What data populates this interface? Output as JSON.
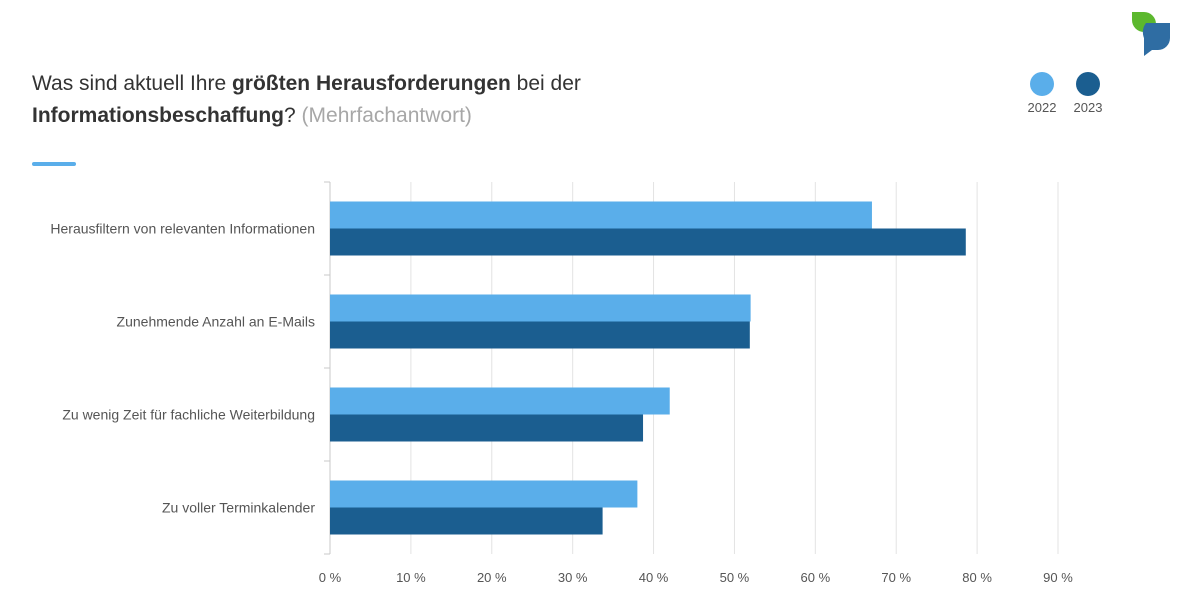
{
  "header": {
    "title_part1": "Was sind aktuell Ihre ",
    "title_bold1": "größten Herausforderungen",
    "title_part2": " bei der ",
    "title_bold2": "Informationsbeschaffung",
    "title_part3": "? ",
    "title_hint": "(Mehrfachantwort)"
  },
  "colors": {
    "accent": "#5aaeea",
    "series_2022": "#5aaeea",
    "series_2023": "#1b5e90",
    "logo_green": "#5cb82e",
    "logo_blue": "#2f6da3"
  },
  "legend": [
    {
      "label": "2022",
      "color": "#5aaeea"
    },
    {
      "label": "2023",
      "color": "#1b5e90"
    }
  ],
  "logo": {
    "icon": "speech-bubble-logo-icon"
  },
  "chart_data": {
    "type": "bar",
    "orientation": "horizontal",
    "categories": [
      "Herausfiltern von relevanten Informationen",
      "Zunehmende Anzahl an E-Mails",
      "Zu wenig Zeit für fachliche Weiterbildung",
      "Zu voller Terminkalender"
    ],
    "series": [
      {
        "name": "2022",
        "values": [
          67,
          52,
          42,
          38
        ]
      },
      {
        "name": "2023",
        "values": [
          78.6,
          51.9,
          38.7,
          33.7
        ]
      }
    ],
    "xlim": [
      0,
      90
    ],
    "xticks": [
      0,
      10,
      20,
      30,
      40,
      50,
      60,
      70,
      80,
      90
    ],
    "xtick_labels": [
      "0 %",
      "10 %",
      "20 %",
      "30 %",
      "40 %",
      "50 %",
      "60 %",
      "70 %",
      "80 %",
      "90 %"
    ],
    "grid": true,
    "legend_position": "top-right"
  }
}
